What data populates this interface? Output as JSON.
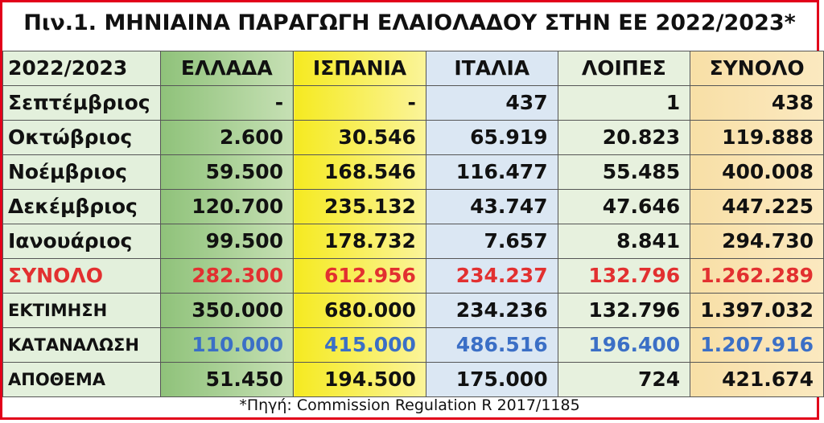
{
  "title": "Πιν.1. ΜΗΝΙΑΙΝΑ ΠΑΡΑΓΩΓΗ ΕΛΑΙΟΛΑΔΟΥ ΣΤΗΝ ΕΕ 2022/2023*",
  "table": {
    "headers": [
      "2022/2023",
      "ΕΛΛΑΔΑ",
      "ΙΣΠΑΝΙΑ",
      "ΙΤΑΛΙΑ",
      "ΛΟΙΠΕΣ",
      "ΣΥΝΟΛΟ"
    ],
    "rows": [
      {
        "label": "Σεπτέμβριος",
        "values": [
          "-",
          "-",
          "437",
          "1",
          "438"
        ]
      },
      {
        "label": "Οκτώβριος",
        "values": [
          "2.600",
          "30.546",
          "65.919",
          "20.823",
          "119.888"
        ]
      },
      {
        "label": "Νοέμβριος",
        "values": [
          "59.500",
          "168.546",
          "116.477",
          "55.485",
          "400.008"
        ]
      },
      {
        "label": "Δεκέμβριος",
        "values": [
          "120.700",
          "235.132",
          "43.747",
          "47.646",
          "447.225"
        ]
      },
      {
        "label": "Ιανουάριος",
        "values": [
          "99.500",
          "178.732",
          "7.657",
          "8.841",
          "294.730"
        ]
      },
      {
        "label": "ΣΥΝΟΛΟ",
        "values": [
          "282.300",
          "612.956",
          "234.237",
          "132.796",
          "1.262.289"
        ]
      },
      {
        "label": "ΕΚΤΙΜΗΣΗ",
        "values": [
          "350.000",
          "680.000",
          "234.236",
          "132.796",
          "1.397.032"
        ]
      },
      {
        "label": "ΚΑΤΑΝΑΛΩΣΗ",
        "values": [
          "110.000",
          "415.000",
          "486.516",
          "196.400",
          "1.207.916"
        ]
      },
      {
        "label": "ΑΠΟΘΕΜΑ",
        "values": [
          "51.450",
          "194.500",
          "175.000",
          "724",
          "421.674"
        ]
      }
    ]
  },
  "footnote": "*Πηγή: Commission Regulation R 2017/1185",
  "colors": {
    "frame_border": "#e2001a",
    "greece_column": "#8fc27a",
    "spain_column": "#f5ea20",
    "italy_column": "#dbe7f3",
    "others_column": "#e7f1de",
    "total_column": "#f8dfa6",
    "total_row_text": "#e23030",
    "consumption_row_text": "#3b6fc6"
  }
}
